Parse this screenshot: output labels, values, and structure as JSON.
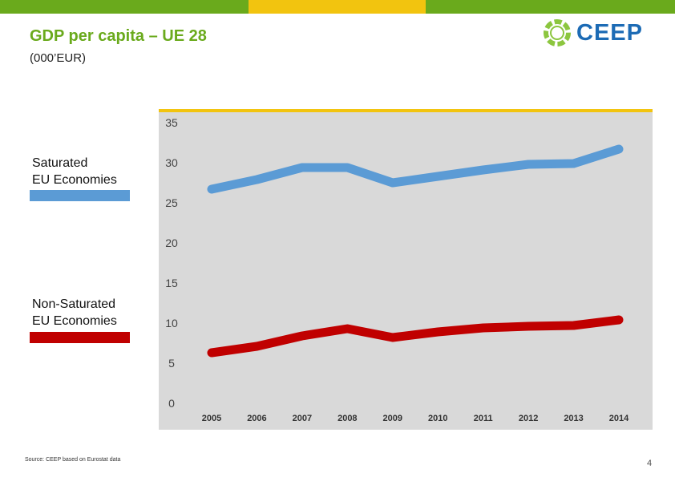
{
  "header": {
    "title": "GDP per capita – UE 28",
    "subtitle": "(000’EUR)",
    "bar_colors": [
      "#6aaa1c",
      "#f2c40f",
      "#6aaa1c"
    ]
  },
  "logo": {
    "text": "CEEP",
    "icon": "ceep-ring-icon",
    "color": "#1c6bb5",
    "ring_color": "#8cc63f"
  },
  "legend": [
    {
      "label_line1": "Saturated",
      "label_line2": "EU Economies",
      "color": "#5b9bd5"
    },
    {
      "label_line1": "Non-Saturated",
      "label_line2": "EU Economies",
      "color": "#c00000"
    }
  ],
  "chart_data": {
    "type": "line",
    "title": "GDP per capita – UE 28",
    "ylabel": "000’EUR",
    "xlabel": "",
    "x": [
      "2005",
      "2006",
      "2007",
      "2008",
      "2009",
      "2010",
      "2011",
      "2012",
      "2013",
      "2014"
    ],
    "ylim": [
      0,
      35
    ],
    "yticks": [
      "0",
      "5",
      "10",
      "15",
      "20",
      "25",
      "30",
      "35"
    ],
    "grid": false,
    "background": "#d9d9d9",
    "top_border_color": "#f2c40f",
    "series": [
      {
        "name": "Saturated EU Economies",
        "color": "#5b9bd5",
        "values": [
          26.7,
          27.9,
          29.4,
          29.4,
          27.5,
          28.3,
          29.1,
          29.8,
          29.9,
          31.7
        ]
      },
      {
        "name": "Non-Saturated EU Economies",
        "color": "#c00000",
        "values": [
          6.3,
          7.1,
          8.4,
          9.3,
          8.2,
          8.9,
          9.4,
          9.6,
          9.7,
          10.4
        ]
      }
    ]
  },
  "footer": {
    "source": "Source: CEEP based on Eurostat data",
    "page_number": "4"
  }
}
